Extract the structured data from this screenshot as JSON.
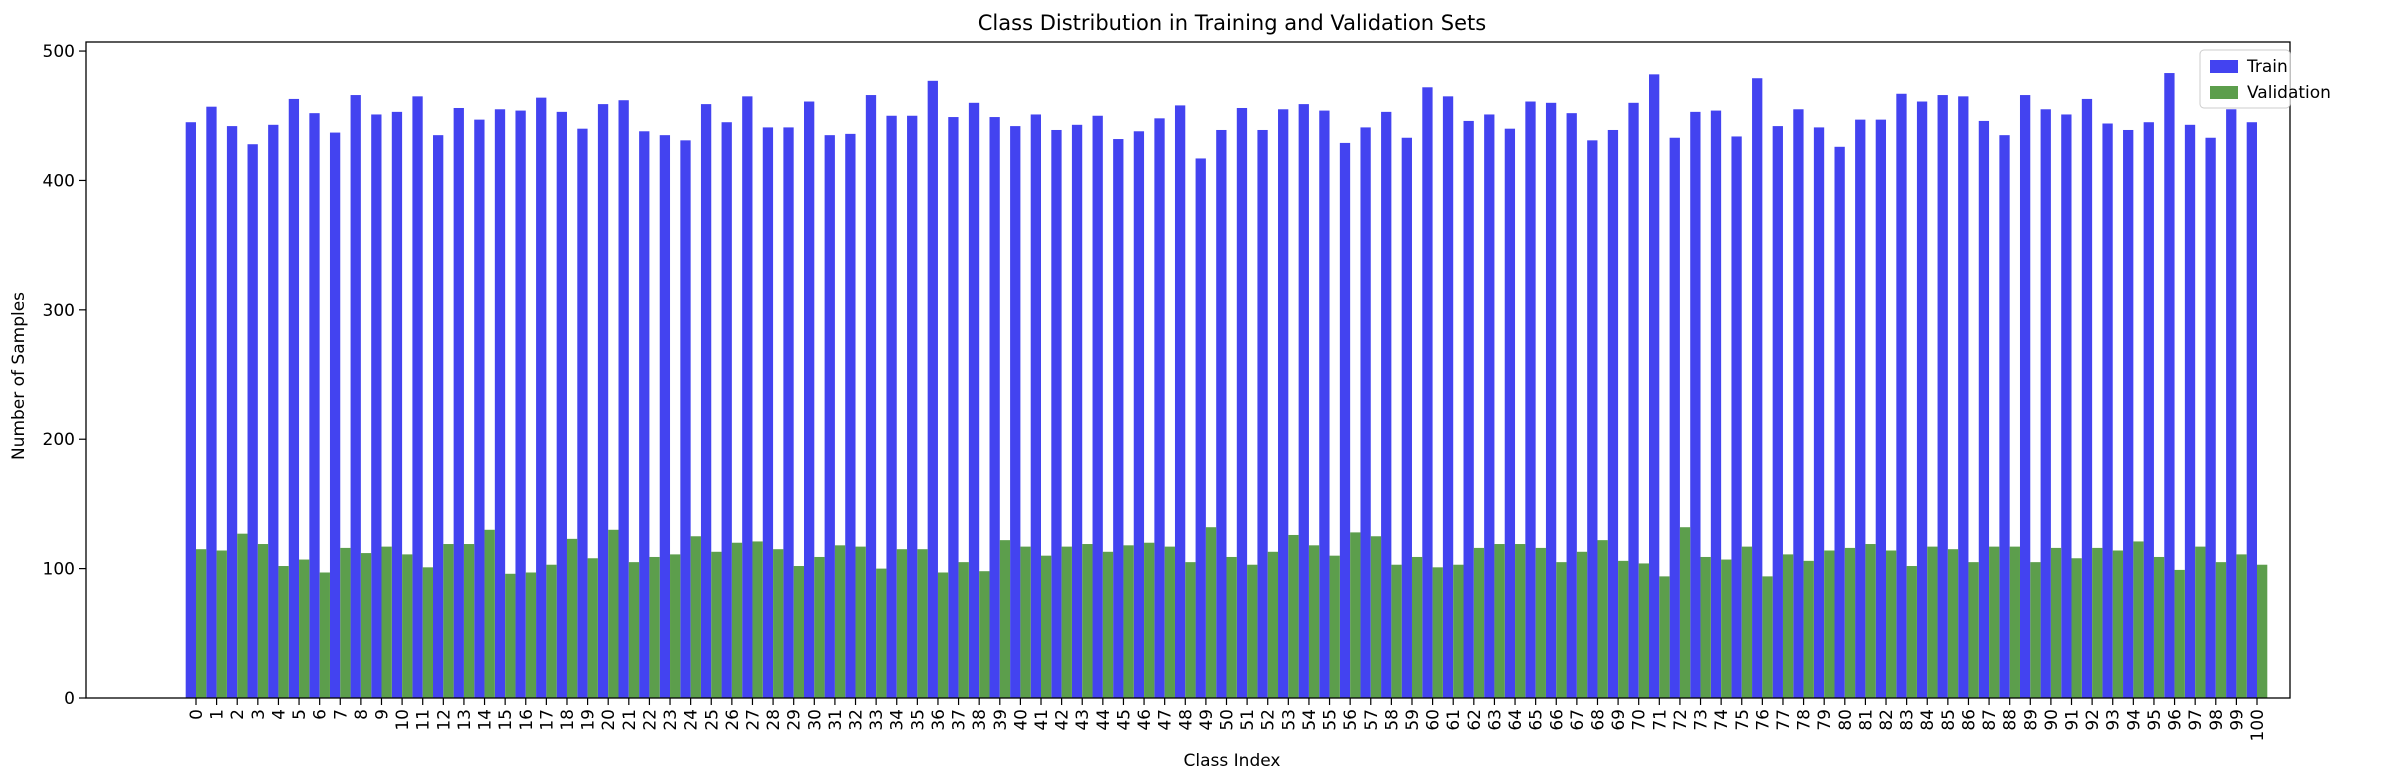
{
  "chart_data": {
    "type": "bar",
    "title": "Class Distribution in Training and Validation Sets",
    "xlabel": "Class Index",
    "ylabel": "Number of Samples",
    "ylim": [
      0,
      507
    ],
    "yticks": [
      0,
      100,
      200,
      300,
      400,
      500
    ],
    "grid": false,
    "legend_position": "top-right",
    "categories": [
      "0",
      "1",
      "2",
      "3",
      "4",
      "5",
      "6",
      "7",
      "8",
      "9",
      "10",
      "11",
      "12",
      "13",
      "14",
      "15",
      "16",
      "17",
      "18",
      "19",
      "20",
      "21",
      "22",
      "23",
      "24",
      "25",
      "26",
      "27",
      "28",
      "29",
      "30",
      "31",
      "32",
      "33",
      "34",
      "35",
      "36",
      "37",
      "38",
      "39",
      "40",
      "41",
      "42",
      "43",
      "44",
      "45",
      "46",
      "47",
      "48",
      "49",
      "50",
      "51",
      "52",
      "53",
      "54",
      "55",
      "56",
      "57",
      "58",
      "59",
      "60",
      "61",
      "62",
      "63",
      "64",
      "65",
      "66",
      "67",
      "68",
      "69",
      "70",
      "71",
      "72",
      "73",
      "74",
      "75",
      "76",
      "77",
      "78",
      "79",
      "80",
      "81",
      "82",
      "83",
      "84",
      "85",
      "86",
      "87",
      "88",
      "89",
      "90",
      "91",
      "92",
      "93",
      "94",
      "95",
      "96",
      "97",
      "98",
      "99",
      "100"
    ],
    "series": [
      {
        "name": "Train",
        "color": "#4343f0",
        "values": [
          445,
          457,
          442,
          428,
          443,
          463,
          452,
          437,
          466,
          451,
          453,
          465,
          435,
          456,
          447,
          455,
          454,
          464,
          453,
          440,
          459,
          462,
          438,
          435,
          431,
          459,
          445,
          465,
          441,
          441,
          461,
          435,
          436,
          466,
          450,
          450,
          477,
          449,
          460,
          449,
          442,
          451,
          439,
          443,
          450,
          432,
          438,
          448,
          458,
          417,
          439,
          456,
          439,
          455,
          459,
          454,
          429,
          441,
          453,
          433,
          472,
          465,
          446,
          451,
          440,
          461,
          460,
          452,
          431,
          439,
          460,
          482,
          433,
          453,
          454,
          434,
          479,
          442,
          455,
          441,
          426,
          447,
          447,
          467,
          461,
          466,
          465,
          446,
          435,
          466,
          455,
          451,
          463,
          444,
          439,
          445,
          483,
          443,
          433,
          455,
          445
        ]
      },
      {
        "name": "Validation",
        "color": "#5c9e4c",
        "values": [
          115,
          114,
          127,
          119,
          102,
          107,
          97,
          116,
          112,
          117,
          111,
          101,
          119,
          119,
          130,
          96,
          97,
          103,
          123,
          108,
          130,
          105,
          109,
          111,
          125,
          113,
          120,
          121,
          115,
          102,
          109,
          118,
          117,
          100,
          115,
          115,
          97,
          105,
          98,
          122,
          117,
          110,
          117,
          119,
          113,
          118,
          120,
          117,
          105,
          132,
          109,
          103,
          113,
          126,
          118,
          110,
          128,
          125,
          103,
          109,
          101,
          103,
          116,
          119,
          119,
          116,
          105,
          113,
          122,
          106,
          104,
          94,
          132,
          109,
          107,
          117,
          94,
          111,
          106,
          114,
          116,
          119,
          114,
          102,
          117,
          115,
          105,
          117,
          117,
          105,
          116,
          108,
          116,
          114,
          121,
          109,
          99,
          117,
          105,
          111,
          103
        ]
      }
    ]
  }
}
